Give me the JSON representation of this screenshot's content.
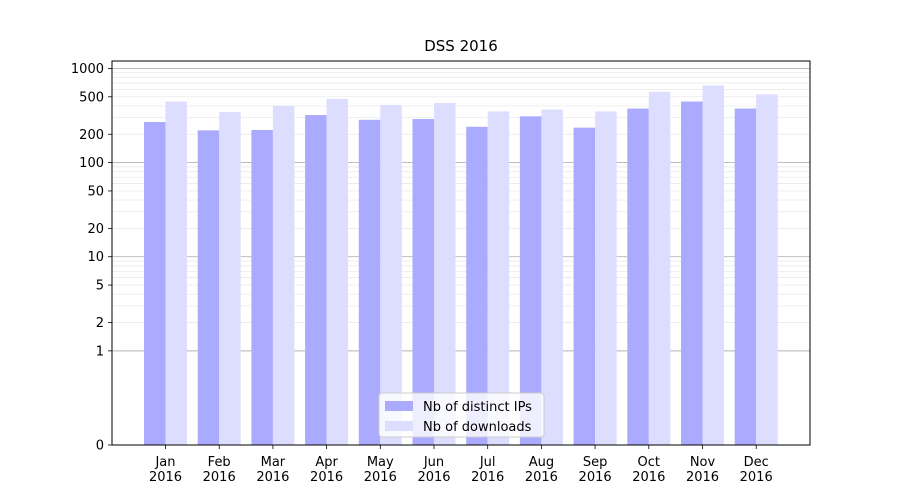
{
  "chart_data": {
    "type": "bar",
    "title": "DSS 2016",
    "xlabel": "",
    "ylabel": "",
    "yscale": "symlog",
    "ylim": [
      0,
      1200
    ],
    "grid": true,
    "legend_position": "bottom-center",
    "categories": [
      "Jan\n2016",
      "Feb\n2016",
      "Mar\n2016",
      "Apr\n2016",
      "May\n2016",
      "Jun\n2016",
      "Jul\n2016",
      "Aug\n2016",
      "Sep\n2016",
      "Oct\n2016",
      "Nov\n2016",
      "Dec\n2016"
    ],
    "yticks": [
      0,
      1,
      2,
      5,
      10,
      20,
      50,
      100,
      200,
      500,
      1000
    ],
    "series": [
      {
        "name": "Nb of distinct IPs",
        "color": "#aaaaff",
        "values": [
          270,
          220,
          222,
          320,
          285,
          290,
          240,
          310,
          235,
          375,
          445,
          375
        ]
      },
      {
        "name": "Nb of downloads",
        "color": "#ddddff",
        "values": [
          445,
          345,
          400,
          475,
          410,
          430,
          350,
          365,
          350,
          565,
          660,
          530
        ]
      }
    ]
  }
}
